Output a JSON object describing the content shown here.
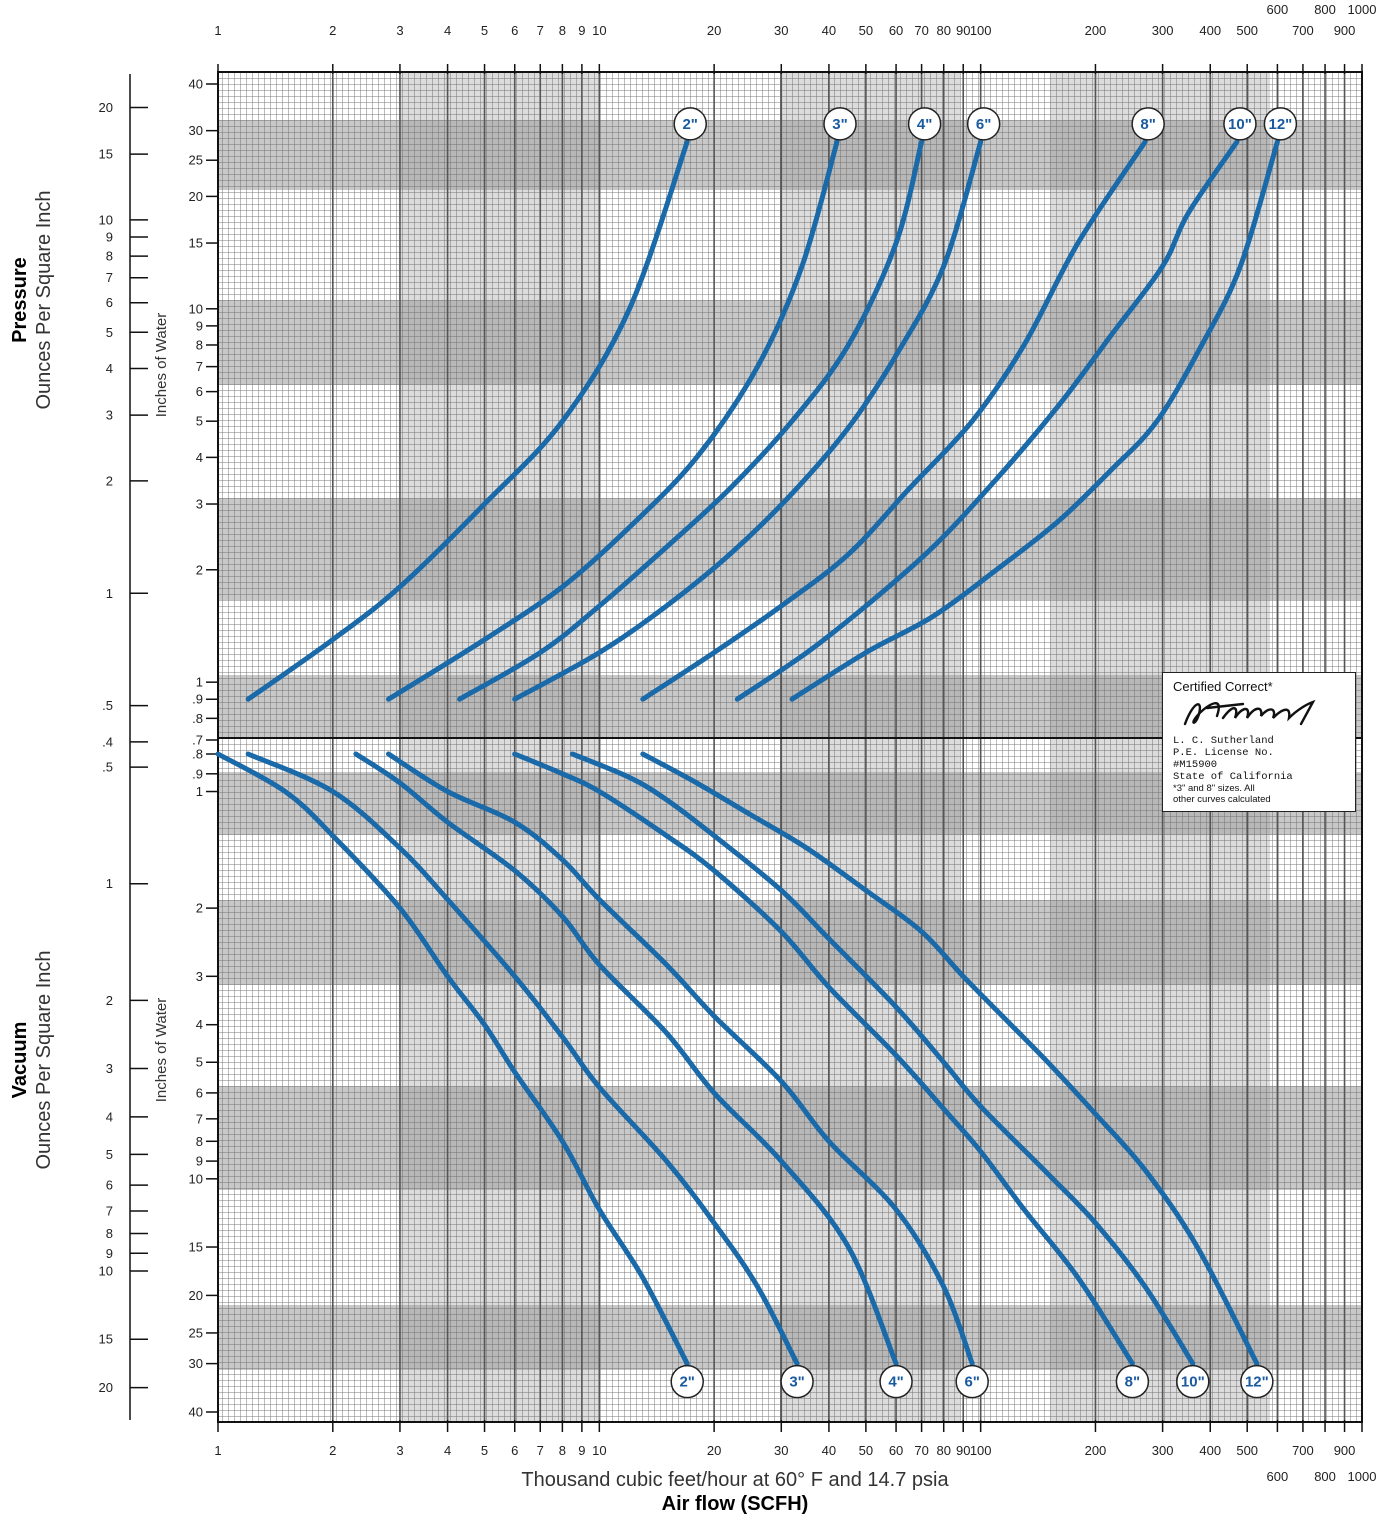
{
  "colors": {
    "curve": "#1a69a8",
    "badge_text": "#1a5aa0",
    "grid_dark": "#555555",
    "band": "#9a9a9a"
  },
  "chart_data": {
    "type": "line",
    "x_scale": "log",
    "xlim": [
      1,
      1000
    ],
    "x_ticks": [
      1,
      2,
      3,
      4,
      5,
      6,
      7,
      8,
      9,
      10,
      20,
      30,
      40,
      50,
      60,
      70,
      80,
      90,
      100,
      200,
      300,
      400,
      500,
      600,
      700,
      800,
      900,
      1000
    ],
    "xlabel_note": "Thousand cubic feet/hour at 60° F and 14.7 psia",
    "xlabel": "Air flow (SCFH)",
    "pressure": {
      "label_bold": "Pressure",
      "label": "Ounces Per Square Inch",
      "water_label": "Inches of Water",
      "y_scale": "log",
      "ylim_water": [
        0.7,
        40
      ],
      "water_ticks": [
        "40",
        "30",
        "25",
        "20",
        "15",
        "10",
        "9",
        "8",
        "7",
        "6",
        "5",
        "4",
        "3",
        "2",
        "1",
        ".9",
        ".8",
        ".7"
      ],
      "oz_ticks": [
        "20",
        "15",
        "10",
        "9",
        "8",
        "7",
        "6",
        "5",
        "4",
        "3",
        "2",
        "1",
        ".5",
        ".4"
      ],
      "series": [
        {
          "name": "2\"",
          "x": [
            1.2,
            2,
            3,
            5,
            8,
            12,
            17
          ],
          "y": [
            0.9,
            1.3,
            1.8,
            3,
            5,
            10,
            28
          ]
        },
        {
          "name": "3\"",
          "x": [
            2.8,
            5,
            8,
            12,
            18,
            26,
            34,
            42
          ],
          "y": [
            0.9,
            1.3,
            1.8,
            2.6,
            4,
            7,
            13,
            28
          ]
        },
        {
          "name": "4\"",
          "x": [
            4.3,
            7,
            10,
            15,
            22,
            32,
            45,
            60,
            70
          ],
          "y": [
            0.9,
            1.2,
            1.6,
            2.3,
            3.3,
            5,
            8,
            15,
            28
          ]
        },
        {
          "name": "6\"",
          "x": [
            6,
            10,
            15,
            22,
            32,
            45,
            60,
            80,
            100
          ],
          "y": [
            0.9,
            1.2,
            1.6,
            2.2,
            3.2,
            4.8,
            7.5,
            13,
            28
          ]
        },
        {
          "name": "8\"",
          "x": [
            13,
            20,
            30,
            45,
            65,
            95,
            130,
            180,
            270
          ],
          "y": [
            0.9,
            1.2,
            1.6,
            2.2,
            3.3,
            5,
            8,
            15,
            28
          ]
        },
        {
          "name": "10\"",
          "x": [
            23,
            35,
            50,
            75,
            110,
            160,
            220,
            300,
            350,
            470
          ],
          "y": [
            0.9,
            1.2,
            1.6,
            2.3,
            3.5,
            5.5,
            8.5,
            13,
            18,
            28
          ]
        },
        {
          "name": "12\"",
          "x": [
            32,
            50,
            75,
            110,
            160,
            220,
            290,
            380,
            480,
            600
          ],
          "y": [
            0.9,
            1.2,
            1.5,
            2,
            2.7,
            3.7,
            5,
            8,
            13,
            28
          ]
        }
      ]
    },
    "vacuum": {
      "label_bold": "Vacuum",
      "label": "Ounces Per Square Inch",
      "water_label": "Inches of Water",
      "y_scale": "log",
      "ylim_water": [
        0.7,
        40
      ],
      "water_ticks": [
        ".8",
        ".9",
        "1",
        "2",
        "3",
        "4",
        "5",
        "6",
        "7",
        "8",
        "9",
        "10",
        "15",
        "20",
        "25",
        "30",
        "40"
      ],
      "oz_ticks": [
        ".5",
        "1",
        "2",
        "3",
        "4",
        "5",
        "6",
        "7",
        "8",
        "9",
        "10",
        "15",
        "20"
      ],
      "series": [
        {
          "name": "2\"",
          "x": [
            1,
            1.5,
            2,
            3,
            4,
            5,
            6,
            8,
            10,
            13,
            17
          ],
          "y": [
            0.8,
            1.0,
            1.3,
            2.0,
            3.0,
            4.0,
            5.3,
            8.0,
            12,
            18,
            30
          ]
        },
        {
          "name": "3\"",
          "x": [
            1.2,
            2,
            3,
            4,
            6,
            8,
            10,
            15,
            20,
            26,
            33
          ],
          "y": [
            0.8,
            1.0,
            1.4,
            1.9,
            3.0,
            4.3,
            5.8,
            9.0,
            13,
            19,
            30
          ]
        },
        {
          "name": "4\"",
          "x": [
            2.3,
            3,
            4,
            6,
            8,
            10,
            15,
            20,
            30,
            45,
            60
          ],
          "y": [
            0.8,
            0.95,
            1.2,
            1.6,
            2.1,
            2.8,
            4.2,
            6.0,
            9.0,
            15,
            30
          ]
        },
        {
          "name": "6\"",
          "x": [
            2.8,
            4,
            6,
            8,
            10,
            15,
            20,
            30,
            40,
            60,
            80,
            95
          ],
          "y": [
            0.8,
            1.0,
            1.2,
            1.5,
            1.9,
            2.8,
            3.8,
            5.6,
            8.0,
            12,
            19,
            30
          ]
        },
        {
          "name": "8\"",
          "x": [
            6,
            8,
            10,
            15,
            20,
            30,
            40,
            60,
            80,
            100,
            130,
            180,
            250
          ],
          "y": [
            0.8,
            0.9,
            1.0,
            1.3,
            1.6,
            2.3,
            3.2,
            4.8,
            6.6,
            8.5,
            12,
            18,
            30
          ]
        },
        {
          "name": "10\"",
          "x": [
            8.5,
            12,
            15,
            20,
            30,
            40,
            60,
            80,
            100,
            150,
            200,
            270,
            360
          ],
          "y": [
            0.8,
            0.92,
            1.05,
            1.3,
            1.8,
            2.4,
            3.6,
            5.0,
            6.5,
            9.7,
            13,
            19,
            30
          ]
        },
        {
          "name": "12\"",
          "x": [
            13,
            18,
            25,
            35,
            50,
            70,
            90,
            120,
            150,
            200,
            270,
            370,
            530
          ],
          "y": [
            0.8,
            0.95,
            1.15,
            1.4,
            1.8,
            2.3,
            3.0,
            4.0,
            5.0,
            6.8,
            9.5,
            15,
            30
          ]
        }
      ]
    }
  },
  "certificate": {
    "heading": "Certified Correct*",
    "name": "L. C. Sutherland",
    "license": "P.E. License No.",
    "number": "#M15900",
    "state": "State of California",
    "note_line1": "*3\" and 8\" sizes. All",
    "note_line2": "other curves calculated"
  }
}
